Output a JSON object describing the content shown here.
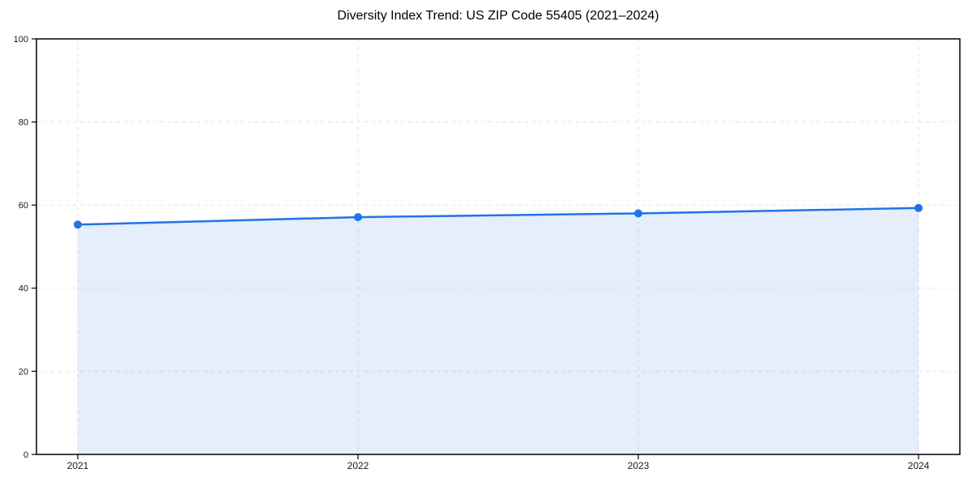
{
  "chart_data": {
    "type": "area",
    "title": "Diversity Index Trend: US ZIP Code 55405 (2021–2024)",
    "categories": [
      "2021",
      "2022",
      "2023",
      "2024"
    ],
    "series": [
      {
        "name": "Diversity Index",
        "values": [
          55.3,
          57.1,
          58.0,
          59.3
        ]
      }
    ],
    "xlabel": "",
    "ylabel": "",
    "ylim": [
      0,
      100
    ],
    "yticks": [
      0,
      20,
      40,
      60,
      80,
      100
    ],
    "grid": "dashed horizontal and vertical gridlines",
    "legend": "none",
    "marker": "circle",
    "colors": {
      "line": "#2173e8",
      "marker": "#2173e8",
      "fill": "#2173e8",
      "fill_opacity": 0.12,
      "grid": "#e2e2e2",
      "axis": "#000000",
      "tick_label": "#1a1a1a",
      "title": "#000000",
      "background": "#ffffff"
    }
  }
}
